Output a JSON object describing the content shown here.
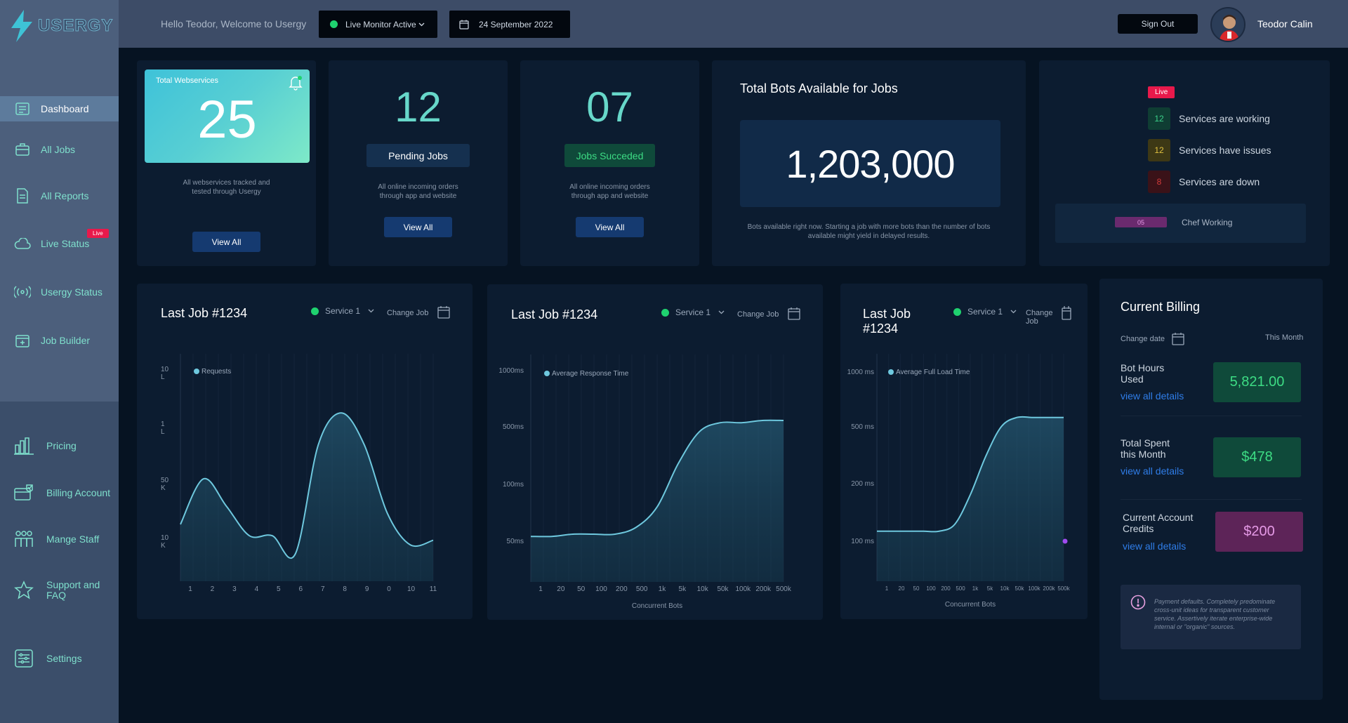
{
  "app": {
    "logo_text": "USERGY"
  },
  "sidebar": {
    "items": [
      {
        "label": "Dashboard",
        "icon": "dashboard-icon",
        "active": true
      },
      {
        "label": "All Jobs",
        "icon": "briefcase-icon"
      },
      {
        "label": "All Reports",
        "icon": "document-icon"
      },
      {
        "label": "Live Status",
        "icon": "cloud-icon",
        "badge": "Live"
      },
      {
        "label": "Usergy Status",
        "icon": "broadcast-icon"
      },
      {
        "label": "Job Builder",
        "icon": "calendar-plus-icon"
      }
    ],
    "lower_items": [
      {
        "label": "Pricing",
        "icon": "bar-chart-icon"
      },
      {
        "label": "Billing Account",
        "icon": "billing-icon"
      },
      {
        "label": "Mange Staff",
        "icon": "staff-icon"
      },
      {
        "label": "Support and FAQ",
        "icon": "star-icon"
      },
      {
        "label": "Settings",
        "icon": "settings-icon"
      }
    ]
  },
  "header": {
    "greeting": "Hello Teodor, Welcome to Usergy",
    "monitor": "Live Monitor Active",
    "date": "24 September 2022",
    "signout": "Sign Out",
    "username": "Teodor Calin"
  },
  "stats": {
    "webservices": {
      "title": "Total Webservices",
      "value": "25",
      "desc": "All webservices tracked and tested through Usergy",
      "button": "View All"
    },
    "pending": {
      "value": "12",
      "label": "Pending Jobs",
      "desc": "All online incoming orders through app and website",
      "button": "View All"
    },
    "succeeded": {
      "value": "07",
      "label": "Jobs Succeded",
      "desc": "All online incoming orders through app and website",
      "button": "View All"
    },
    "bots": {
      "title": "Total Bots Available for Jobs",
      "value": "1,203,000",
      "desc": "Bots available right now. Starting a job with more bots than the number of bots available might yield in delayed results."
    }
  },
  "live_status": {
    "badge": "Live",
    "rows": [
      {
        "count": "12",
        "label": "Services are working",
        "color": "#3bd18a"
      },
      {
        "count": "12",
        "label": "Services have issues",
        "color": "#e0c040"
      },
      {
        "count": "8",
        "label": "Services are down",
        "color": "#d33b3b"
      }
    ],
    "chef": {
      "count": "05",
      "label": "Chef Working"
    }
  },
  "charts": [
    {
      "title": "Last Job #1234",
      "service": "Service 1",
      "change_job": "Change Job",
      "legend": "Requests",
      "y_ticks": [
        "10\nL",
        "1\nL",
        "50\nK",
        "10\nK"
      ],
      "x_ticks": [
        "1",
        "2",
        "3",
        "4",
        "5",
        "6",
        "7",
        "8",
        "9",
        "0",
        "10",
        "11"
      ],
      "x_label": ""
    },
    {
      "title": "Last Job #1234",
      "service": "Service 1",
      "change_job": "Change Job",
      "legend": "Average Response Time",
      "y_ticks": [
        "1000ms",
        "500ms",
        "100ms",
        "50ms"
      ],
      "x_ticks": [
        "1",
        "20",
        "50",
        "100",
        "200",
        "500",
        "1k",
        "5k",
        "10k",
        "50k",
        "100k",
        "200k",
        "500k"
      ],
      "x_label": "Concurrent Bots"
    },
    {
      "title": "Last Job #1234",
      "service": "Service 1",
      "change_job": "Change Job",
      "legend": "Average Full Load Time",
      "y_ticks": [
        "1000 ms",
        "500 ms",
        "200 ms",
        "100 ms"
      ],
      "x_ticks": [
        "1",
        "20",
        "50",
        "100",
        "200",
        "500",
        "1k",
        "5k",
        "10k",
        "50k",
        "100k",
        "200k",
        "500k"
      ],
      "x_label": "Concurrent Bots"
    }
  ],
  "chart_data": [
    {
      "type": "area",
      "series": [
        {
          "name": "Requests",
          "values": [
            0.25,
            0.45,
            0.33,
            0.2,
            0.2,
            0.12,
            0.6,
            0.74,
            0.6,
            0.3,
            0.16,
            0.18
          ]
        }
      ],
      "categories": [
        "1",
        "2",
        "3",
        "4",
        "5",
        "6",
        "7",
        "8",
        "9",
        "0",
        "10",
        "11"
      ]
    },
    {
      "type": "area",
      "series": [
        {
          "name": "Average Response Time",
          "values": [
            0.2,
            0.2,
            0.21,
            0.21,
            0.21,
            0.24,
            0.33,
            0.52,
            0.66,
            0.7,
            0.7,
            0.71,
            0.71
          ]
        }
      ],
      "categories": [
        "1",
        "20",
        "50",
        "100",
        "200",
        "500",
        "1k",
        "5k",
        "10k",
        "50k",
        "100k",
        "200k",
        "500k"
      ],
      "xlabel": "Concurrent Bots"
    },
    {
      "type": "area",
      "series": [
        {
          "name": "Average Full Load Time",
          "values": [
            0.22,
            0.22,
            0.22,
            0.22,
            0.22,
            0.25,
            0.38,
            0.55,
            0.68,
            0.72,
            0.72,
            0.72,
            0.72
          ]
        }
      ],
      "categories": [
        "1",
        "20",
        "50",
        "100",
        "200",
        "500",
        "1k",
        "5k",
        "10k",
        "50k",
        "100k",
        "200k",
        "500k"
      ],
      "xlabel": "Concurrent Bots"
    }
  ],
  "billing": {
    "title": "Current Billing",
    "change_date": "Change date",
    "period": "This Month",
    "items": [
      {
        "label": "Bot Hours Used",
        "value": "5,821.00",
        "link": "view all details"
      },
      {
        "label": "Total Spent this Month",
        "value": "$478",
        "link": "view all details"
      },
      {
        "label": "Current Account Credits",
        "value": "$200",
        "link": "view all details"
      }
    ],
    "notice": "Payment defaults. Completely predominate cross-unit ideas for transparent customer service. Assertively iterate enterprise-wide internal or \"organic\" sources."
  }
}
